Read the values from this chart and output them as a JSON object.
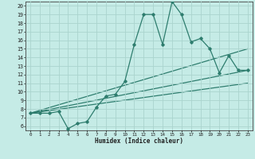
{
  "xlabel": "Humidex (Indice chaleur)",
  "bg_color": "#c5ebe6",
  "grid_color": "#aad4ce",
  "line_color": "#2e7d6e",
  "xlim": [
    -0.5,
    23.5
  ],
  "ylim": [
    5.5,
    20.5
  ],
  "xticks": [
    0,
    1,
    2,
    3,
    4,
    5,
    6,
    7,
    8,
    9,
    10,
    11,
    12,
    13,
    14,
    15,
    16,
    17,
    18,
    19,
    20,
    21,
    22,
    23
  ],
  "yticks": [
    6,
    7,
    8,
    9,
    10,
    11,
    12,
    13,
    14,
    15,
    16,
    17,
    18,
    19,
    20
  ],
  "line1_x": [
    0,
    1,
    2,
    3,
    4,
    5,
    6,
    7,
    8,
    9,
    10,
    11,
    12,
    13,
    14,
    15,
    16,
    17,
    18,
    19,
    20,
    21,
    22,
    23
  ],
  "line1_y": [
    7.5,
    7.5,
    7.5,
    7.7,
    5.7,
    6.3,
    6.5,
    8.2,
    9.5,
    9.7,
    11.2,
    15.5,
    19.0,
    19.0,
    15.5,
    20.5,
    19.0,
    15.8,
    16.2,
    15.0,
    12.2,
    14.2,
    12.5,
    12.5
  ],
  "line2_x": [
    0,
    23
  ],
  "line2_y": [
    7.5,
    12.5
  ],
  "line3_x": [
    0,
    23
  ],
  "line3_y": [
    7.5,
    15.0
  ],
  "line4_x": [
    0,
    23
  ],
  "line4_y": [
    7.5,
    11.0
  ]
}
